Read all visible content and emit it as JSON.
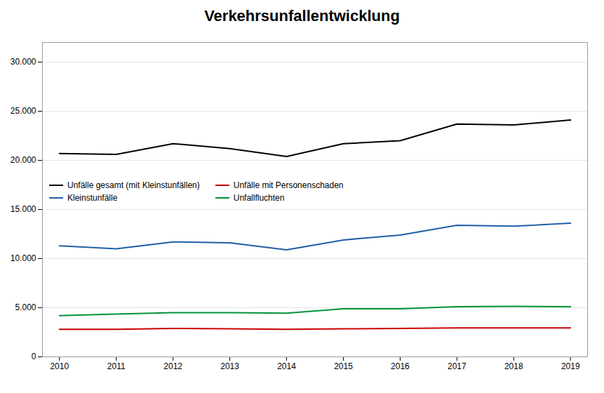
{
  "chart_data": {
    "type": "line",
    "title": "Verkehrsunfallentwicklung",
    "x": [
      2010,
      2011,
      2012,
      2013,
      2014,
      2015,
      2016,
      2017,
      2018,
      2019
    ],
    "series": [
      {
        "name": "Unfälle gesamt (mit Kleinstunfällen)",
        "color": "#000000",
        "values": [
          20700,
          20600,
          21700,
          21200,
          20400,
          21700,
          22000,
          23700,
          23600,
          24100
        ]
      },
      {
        "name": "Unfälle mit Personenschaden",
        "color": "#cc0000",
        "values": [
          2800,
          2800,
          2900,
          2850,
          2800,
          2850,
          2900,
          2950,
          2950,
          2950
        ]
      },
      {
        "name": "Kleinstunfälle",
        "color": "#1f5fa6",
        "values": [
          11300,
          11000,
          11700,
          11600,
          10900,
          11900,
          12400,
          13400,
          13300,
          13600
        ]
      },
      {
        "name": "Unfallfluchten",
        "color": "#00933a",
        "values": [
          4200,
          4350,
          4500,
          4500,
          4450,
          4900,
          4900,
          5100,
          5150,
          5100
        ]
      }
    ],
    "xlim": [
      2009.7,
      2019.3
    ],
    "xticks": [
      2010,
      2011,
      2012,
      2013,
      2014,
      2015,
      2016,
      2017,
      2018,
      2019
    ],
    "ylim": [
      0,
      32000
    ],
    "yticks": [
      0,
      {
        "value": 5000,
        "label": "5.000"
      },
      {
        "value": 10000,
        "label": "10.000"
      },
      {
        "value": 15000,
        "label": "15.000"
      },
      {
        "value": 20000,
        "label": "20.000"
      },
      {
        "value": 25000,
        "label": "25.000"
      },
      {
        "value": 30000,
        "label": "30.000"
      }
    ],
    "grid": "y",
    "legend": "center left"
  }
}
